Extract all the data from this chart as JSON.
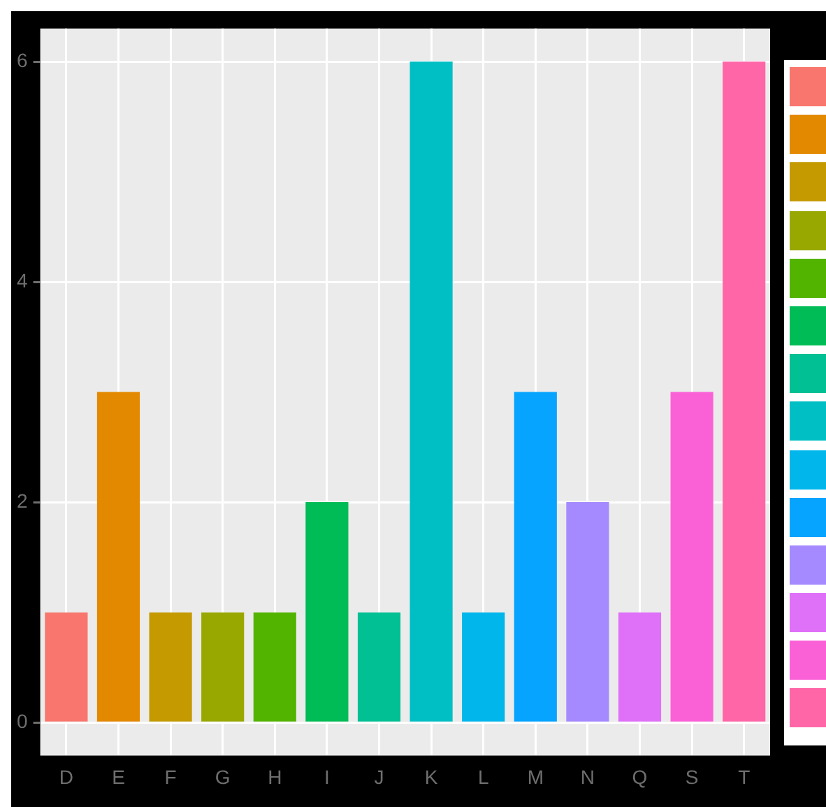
{
  "chart_data": {
    "type": "bar",
    "categories": [
      "D",
      "E",
      "F",
      "G",
      "H",
      "I",
      "J",
      "K",
      "L",
      "M",
      "N",
      "Q",
      "S",
      "T"
    ],
    "values": [
      1,
      3,
      1,
      1,
      1,
      2,
      1,
      6,
      1,
      3,
      2,
      1,
      3,
      6
    ],
    "colors": [
      "#F8766D",
      "#E38900",
      "#C49A00",
      "#99A800",
      "#53B400",
      "#00BC56",
      "#00C094",
      "#00BFC4",
      "#00B6EB",
      "#06A4FF",
      "#A58AFF",
      "#DF70F8",
      "#FB61D7",
      "#FF66A8"
    ],
    "ylim": [
      -0.3,
      6.3
    ],
    "yticks": [
      0,
      2,
      4,
      6
    ],
    "grid": true
  }
}
